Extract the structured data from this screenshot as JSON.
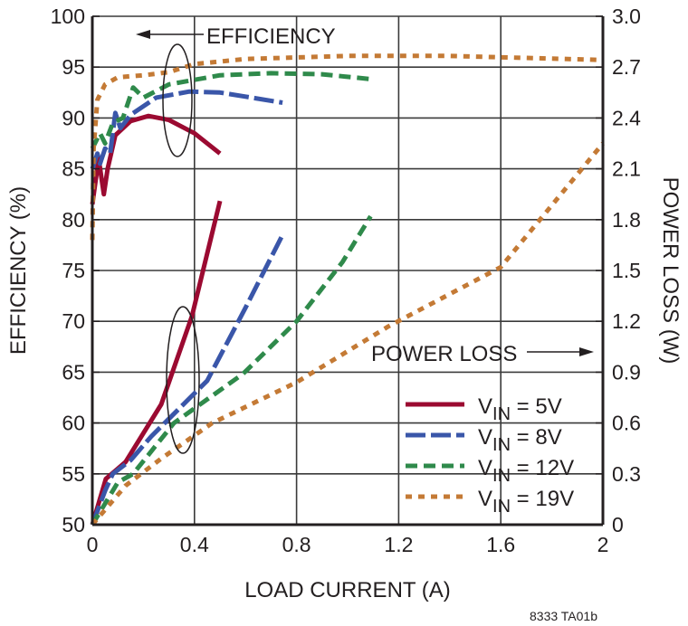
{
  "chart_data": {
    "type": "line",
    "xlabel": "LOAD CURRENT (A)",
    "ylabel": "EFFICIENCY (%)",
    "y2label": "POWER LOSS (W)",
    "xlim": [
      0,
      2
    ],
    "ylim": [
      50,
      100
    ],
    "y2lim": [
      0,
      3.0
    ],
    "x_ticks": [
      "0",
      "0.4",
      "0.8",
      "1.2",
      "1.6",
      "2"
    ],
    "x_tick_values": [
      0,
      0.4,
      0.8,
      1.2,
      1.6,
      2
    ],
    "y_ticks": [
      "50",
      "55",
      "60",
      "65",
      "70",
      "75",
      "80",
      "85",
      "90",
      "95",
      "100"
    ],
    "y2_ticks": [
      "0",
      "0.3",
      "0.6",
      "0.9",
      "1.2",
      "1.5",
      "1.8",
      "2.1",
      "2.4",
      "2.7",
      "3.0"
    ],
    "grid": true,
    "legend_position": "bottom-right",
    "annotations": {
      "efficiency": "EFFICIENCY",
      "power_loss": "POWER LOSS",
      "figure_id": "8333  TA01b"
    },
    "series": [
      {
        "name": "VIN = 5V",
        "label_main": "V",
        "label_sub": "IN",
        "label_rest": " = 5V",
        "color": "#9b0a31",
        "style": "solid",
        "efficiency": [
          [
            0,
            81.5
          ],
          [
            0.025,
            86
          ],
          [
            0.045,
            82.5
          ],
          [
            0.06,
            85
          ],
          [
            0.09,
            88.3
          ],
          [
            0.15,
            89.7
          ],
          [
            0.22,
            90.2
          ],
          [
            0.3,
            89.8
          ],
          [
            0.4,
            88.5
          ],
          [
            0.5,
            86.5
          ]
        ],
        "power_loss": [
          [
            0,
            0
          ],
          [
            0.053,
            0.27
          ],
          [
            0.13,
            0.37
          ],
          [
            0.27,
            0.71
          ],
          [
            0.39,
            1.23
          ],
          [
            0.5,
            1.91
          ]
        ]
      },
      {
        "name": "VIN = 8V",
        "label_main": "V",
        "label_sub": "IN",
        "label_rest": " = 8V",
        "color": "#3a56a9",
        "style": "longdash",
        "efficiency": [
          [
            0,
            85
          ],
          [
            0.02,
            86.5
          ],
          [
            0.03,
            85.5
          ],
          [
            0.05,
            87
          ],
          [
            0.07,
            86.5
          ],
          [
            0.09,
            90.5
          ],
          [
            0.11,
            89
          ],
          [
            0.15,
            90.3
          ],
          [
            0.25,
            92
          ],
          [
            0.38,
            92.6
          ],
          [
            0.5,
            92.5
          ],
          [
            0.6,
            92.1
          ],
          [
            0.745,
            91.5
          ]
        ],
        "power_loss": [
          [
            0,
            0
          ],
          [
            0.05,
            0.2
          ],
          [
            0.08,
            0.3
          ],
          [
            0.15,
            0.38
          ],
          [
            0.23,
            0.52
          ],
          [
            0.45,
            0.85
          ],
          [
            0.6,
            1.28
          ],
          [
            0.745,
            1.71
          ]
        ]
      },
      {
        "name": "VIN = 12V",
        "label_main": "V",
        "label_sub": "IN",
        "label_rest": " = 12V",
        "color": "#2f8a4b",
        "style": "dash",
        "efficiency": [
          [
            0,
            87
          ],
          [
            0.03,
            88.5
          ],
          [
            0.05,
            87.5
          ],
          [
            0.08,
            89.5
          ],
          [
            0.12,
            90
          ],
          [
            0.16,
            93
          ],
          [
            0.2,
            92
          ],
          [
            0.3,
            93.3
          ],
          [
            0.5,
            94.2
          ],
          [
            0.7,
            94.4
          ],
          [
            0.9,
            94.3
          ],
          [
            1.1,
            93.8
          ]
        ],
        "power_loss": [
          [
            0,
            0
          ],
          [
            0.1,
            0.25
          ],
          [
            0.16,
            0.3
          ],
          [
            0.32,
            0.6
          ],
          [
            0.59,
            0.89
          ],
          [
            0.8,
            1.2
          ],
          [
            0.98,
            1.55
          ],
          [
            1.09,
            1.82
          ]
        ]
      },
      {
        "name": "VIN = 19V",
        "label_main": "V",
        "label_sub": "IN",
        "label_rest": " = 19V",
        "color": "#c47a35",
        "style": "shortdash",
        "efficiency": [
          [
            0,
            78
          ],
          [
            0.005,
            87
          ],
          [
            0.02,
            91.8
          ],
          [
            0.05,
            93.3
          ],
          [
            0.1,
            94
          ],
          [
            0.2,
            94.2
          ],
          [
            0.3,
            94.5
          ],
          [
            0.4,
            95.3
          ],
          [
            0.6,
            95.8
          ],
          [
            1.0,
            96.1
          ],
          [
            1.4,
            96.1
          ],
          [
            2.0,
            95.7
          ]
        ],
        "power_loss": [
          [
            0,
            0
          ],
          [
            0.13,
            0.23
          ],
          [
            0.27,
            0.39
          ],
          [
            0.47,
            0.6
          ],
          [
            0.8,
            0.84
          ],
          [
            1.16,
            1.17
          ],
          [
            1.6,
            1.52
          ],
          [
            2.0,
            2.25
          ]
        ]
      }
    ]
  }
}
